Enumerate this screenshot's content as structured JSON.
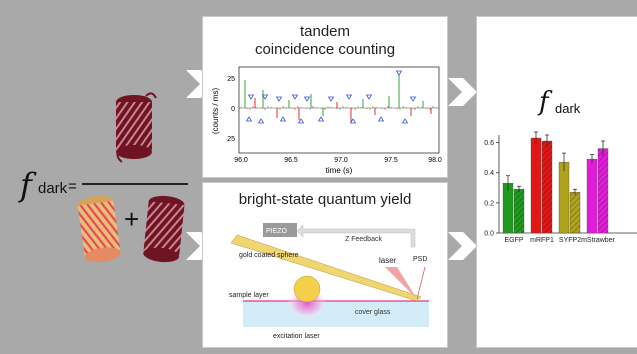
{
  "colors": {
    "background": "#a9a9a9",
    "panel": "#ffffff",
    "barrel_dark": "#6e1422",
    "barrel_light": "#e9bf78",
    "egfp": "#1f9a1f",
    "mrfp1": "#e21616",
    "syfp2": "#b1a21b",
    "mstrawberry": "#e21dd9",
    "blue_markers": "#3255d8",
    "cantilever": "#f0d672",
    "sphere": "#f4d04a",
    "excitation": "#e84dc4",
    "cover_glass": "#d4ecf8"
  },
  "formula": {
    "f_symbol": "f",
    "subscript": "dark",
    "equals": "=",
    "plus": "+"
  },
  "top_panel": {
    "title_line1": "tandem",
    "title_line2": "coincidence counting",
    "ylabel": "(counts / ms)",
    "xlabel": "time (s)",
    "y_ticks": [
      "25",
      "0",
      "25"
    ],
    "x_ticks": [
      "96.0",
      "96.5",
      "97.0",
      "97.5",
      "98.0"
    ]
  },
  "bottom_panel": {
    "title": "bright-state quantum yield",
    "labels": {
      "piezo": "PIEZO",
      "z_feedback": "Z Feedback",
      "laser": "laser",
      "psd": "PSD",
      "sphere": "gold coated sphere",
      "sample_layer": "sample layer",
      "cover_glass": "cover glass",
      "excitation": "excitation laser"
    }
  },
  "right_panel": {
    "f_symbol": "f",
    "subscript": "dark"
  },
  "chart_data": {
    "type": "bar",
    "categories": [
      "EGFP",
      "mRFP1",
      "SYFP2",
      "mStrawberry"
    ],
    "tick_labels": [
      "EGFP",
      "mRFP1",
      "SYFP2",
      "mStrawber"
    ],
    "y_ticks": [
      "0.0",
      "0.2",
      "0.4",
      "0.6"
    ],
    "ylim": [
      0,
      0.65
    ],
    "bars": [
      {
        "category": "EGFP",
        "color": "#1f9a1f",
        "pattern": "solid",
        "value": 0.33,
        "error": 0.05
      },
      {
        "category": "EGFP",
        "color": "#1f9a1f",
        "pattern": "hatched",
        "value": 0.29,
        "error": 0.02
      },
      {
        "category": "mRFP1",
        "color": "#e21616",
        "pattern": "solid",
        "value": 0.63,
        "error": 0.04
      },
      {
        "category": "mRFP1",
        "color": "#e21616",
        "pattern": "hatched",
        "value": 0.61,
        "error": 0.04
      },
      {
        "category": "SYFP2",
        "color": "#b1a21b",
        "pattern": "solid",
        "value": 0.47,
        "error": 0.06
      },
      {
        "category": "SYFP2",
        "color": "#b1a21b",
        "pattern": "hatched",
        "value": 0.27,
        "error": 0.02
      },
      {
        "category": "mStrawberry",
        "color": "#e21dd9",
        "pattern": "solid",
        "value": 0.49,
        "error": 0.03
      },
      {
        "category": "mStrawberry",
        "color": "#e21dd9",
        "pattern": "hatched",
        "value": 0.56,
        "error": 0.05
      }
    ]
  }
}
